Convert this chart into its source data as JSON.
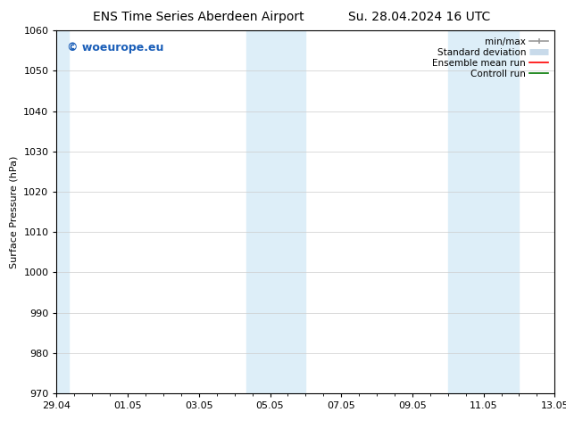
{
  "title_left": "ENS Time Series Aberdeen Airport",
  "title_right": "Su. 28.04.2024 16 UTC",
  "ylabel": "Surface Pressure (hPa)",
  "ylim": [
    970,
    1060
  ],
  "yticks": [
    970,
    980,
    990,
    1000,
    1010,
    1020,
    1030,
    1040,
    1050,
    1060
  ],
  "x_tick_labels": [
    "29.04",
    "01.05",
    "03.05",
    "05.05",
    "07.05",
    "09.05",
    "11.05",
    "13.05"
  ],
  "x_tick_positions": [
    0,
    2,
    4,
    6,
    8,
    10,
    12,
    14
  ],
  "x_total_days": 14,
  "shaded_bands": [
    {
      "x_start": 0.0,
      "x_end": 0.33,
      "color": "#ddeef8"
    },
    {
      "x_start": 5.33,
      "x_end": 7.0,
      "color": "#ddeef8"
    },
    {
      "x_start": 11.0,
      "x_end": 13.0,
      "color": "#ddeef8"
    }
  ],
  "watermark_text": "© woeurope.eu",
  "watermark_color": "#1a5eb8",
  "watermark_fontsize": 9,
  "legend_items": [
    {
      "label": "min/max",
      "color": "#999999",
      "lw": 1.2,
      "style": "line_with_caps"
    },
    {
      "label": "Standard deviation",
      "color": "#c8daea",
      "lw": 5,
      "style": "thick"
    },
    {
      "label": "Ensemble mean run",
      "color": "#ff0000",
      "lw": 1.2,
      "style": "line"
    },
    {
      "label": "Controll run",
      "color": "#007700",
      "lw": 1.2,
      "style": "line"
    }
  ],
  "background_color": "#ffffff",
  "plot_bg_color": "#ffffff",
  "grid_color": "#cccccc",
  "title_fontsize": 10,
  "axis_fontsize": 8,
  "tick_fontsize": 8,
  "legend_fontsize": 7.5
}
